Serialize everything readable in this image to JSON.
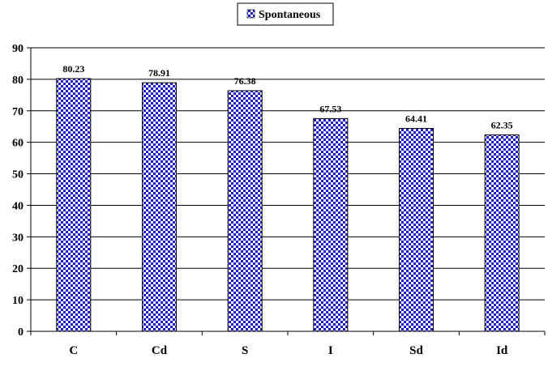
{
  "chart_data": {
    "type": "bar",
    "title": "",
    "xlabel": "",
    "ylabel": "",
    "legend_position": "top-center",
    "grid": true,
    "categories": [
      "C",
      "Cd",
      "S",
      "I",
      "Sd",
      "Id"
    ],
    "series": [
      {
        "name": "Spontaneous",
        "values": [
          80.23,
          78.91,
          76.38,
          67.53,
          64.41,
          62.35
        ],
        "data_labels": [
          "80.23",
          "78.91",
          "76.38",
          "67.53",
          "64.41",
          "62.35"
        ],
        "pattern": "checkerboard",
        "colors": {
          "primary": "#1c1cc8",
          "secondary": "#ffffff",
          "outline": "#000000"
        }
      }
    ],
    "ylim": [
      0,
      90
    ],
    "yticks": [
      "0",
      "10",
      "20",
      "30",
      "40",
      "50",
      "60",
      "70",
      "80",
      "90"
    ]
  }
}
